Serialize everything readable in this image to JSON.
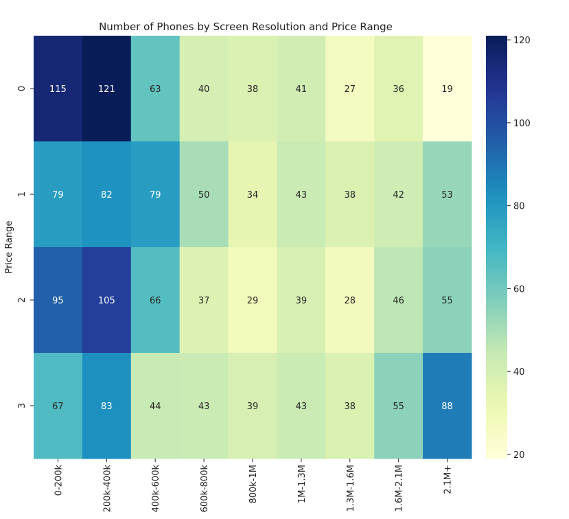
{
  "chart_data": {
    "type": "heatmap",
    "title": "Number of Phones by Screen Resolution and Price Range",
    "xlabel": "",
    "ylabel": "Price Range",
    "x_categories": [
      "0-200k",
      "200k-400k",
      "400k-600k",
      "600k-800k",
      "800k-1M",
      "1M-1.3M",
      "1.3M-1.6M",
      "1.6M-2.1M",
      "2.1M+"
    ],
    "y_categories": [
      "0",
      "1",
      "2",
      "3"
    ],
    "values": [
      [
        115,
        121,
        63,
        40,
        38,
        41,
        27,
        36,
        19
      ],
      [
        79,
        82,
        79,
        50,
        34,
        43,
        38,
        42,
        53
      ],
      [
        95,
        105,
        66,
        37,
        29,
        39,
        28,
        46,
        55
      ],
      [
        67,
        83,
        44,
        43,
        39,
        43,
        38,
        55,
        88
      ]
    ],
    "colorbar": {
      "min": 19,
      "max": 121,
      "ticks": [
        20,
        40,
        60,
        80,
        100,
        120
      ],
      "colormap": "YlGnBu"
    }
  }
}
